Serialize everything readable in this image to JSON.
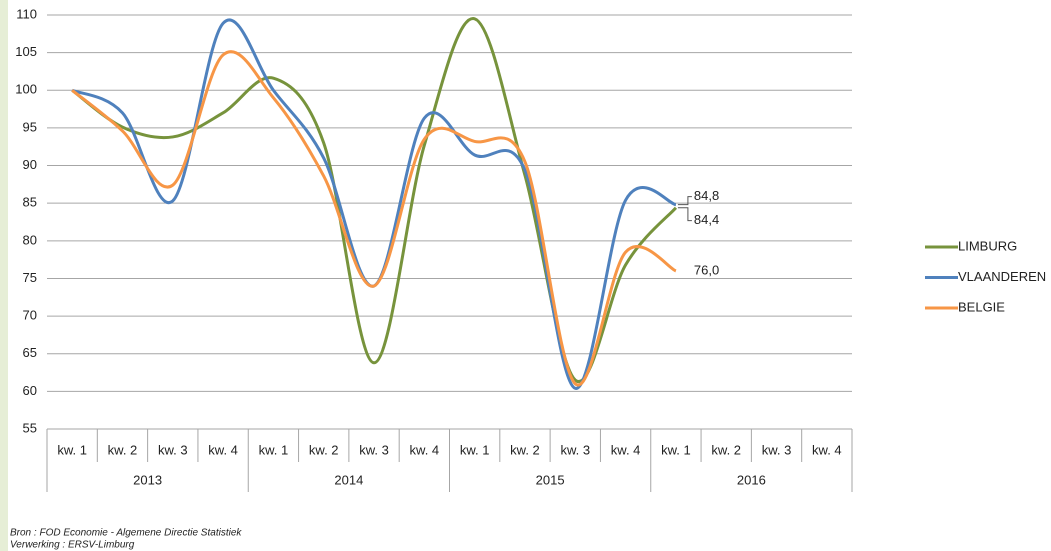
{
  "chart_data": {
    "type": "line",
    "smooth": true,
    "categories": [
      "kw. 1",
      "kw. 2",
      "kw. 3",
      "kw. 4",
      "kw. 1",
      "kw. 2",
      "kw. 3",
      "kw. 4",
      "kw. 1",
      "kw. 2",
      "kw. 3",
      "kw. 4",
      "kw. 1",
      "kw. 2",
      "kw. 3",
      "kw. 4"
    ],
    "category_groups": [
      "2013",
      "2014",
      "2015",
      "2016"
    ],
    "series": [
      {
        "name": "LIMBURG",
        "color": "#77933c",
        "values": [
          100,
          95.1,
          93.8,
          97,
          101.6,
          93,
          63.8,
          92.7,
          109.5,
          88.7,
          61.5,
          76.8,
          84.4,
          null,
          null,
          null
        ],
        "value_labels": [
          null,
          null,
          null,
          null,
          null,
          null,
          null,
          null,
          null,
          null,
          null,
          null,
          "84,4",
          null,
          null,
          null
        ]
      },
      {
        "name": "VLAANDEREN",
        "color": "#4f81bd",
        "values": [
          100,
          97,
          85.3,
          108.9,
          100,
          91,
          74,
          96.3,
          91.4,
          89.4,
          60.4,
          85.4,
          84.8,
          null,
          null,
          null
        ],
        "value_labels": [
          null,
          null,
          null,
          null,
          null,
          null,
          null,
          null,
          null,
          null,
          null,
          null,
          "84,8",
          null,
          null,
          null
        ]
      },
      {
        "name": "BELGIE",
        "color": "#f79646",
        "values": [
          100,
          94.6,
          87.4,
          104.7,
          99,
          88.6,
          74,
          93.5,
          93.2,
          90.5,
          61,
          78.5,
          76,
          null,
          null,
          null
        ],
        "value_labels": [
          null,
          null,
          null,
          null,
          null,
          null,
          null,
          null,
          null,
          null,
          null,
          null,
          "76,0",
          null,
          null,
          null
        ]
      }
    ],
    "ylim": [
      55,
      110
    ],
    "yticks": [
      55,
      60,
      65,
      70,
      75,
      80,
      85,
      90,
      95,
      100,
      105,
      110
    ],
    "grid": true,
    "legend": "right"
  },
  "source": [
    "Bron : FOD Economie - Algemene Directie Statistiek",
    "Verwerking : ERSV-Limburg"
  ]
}
